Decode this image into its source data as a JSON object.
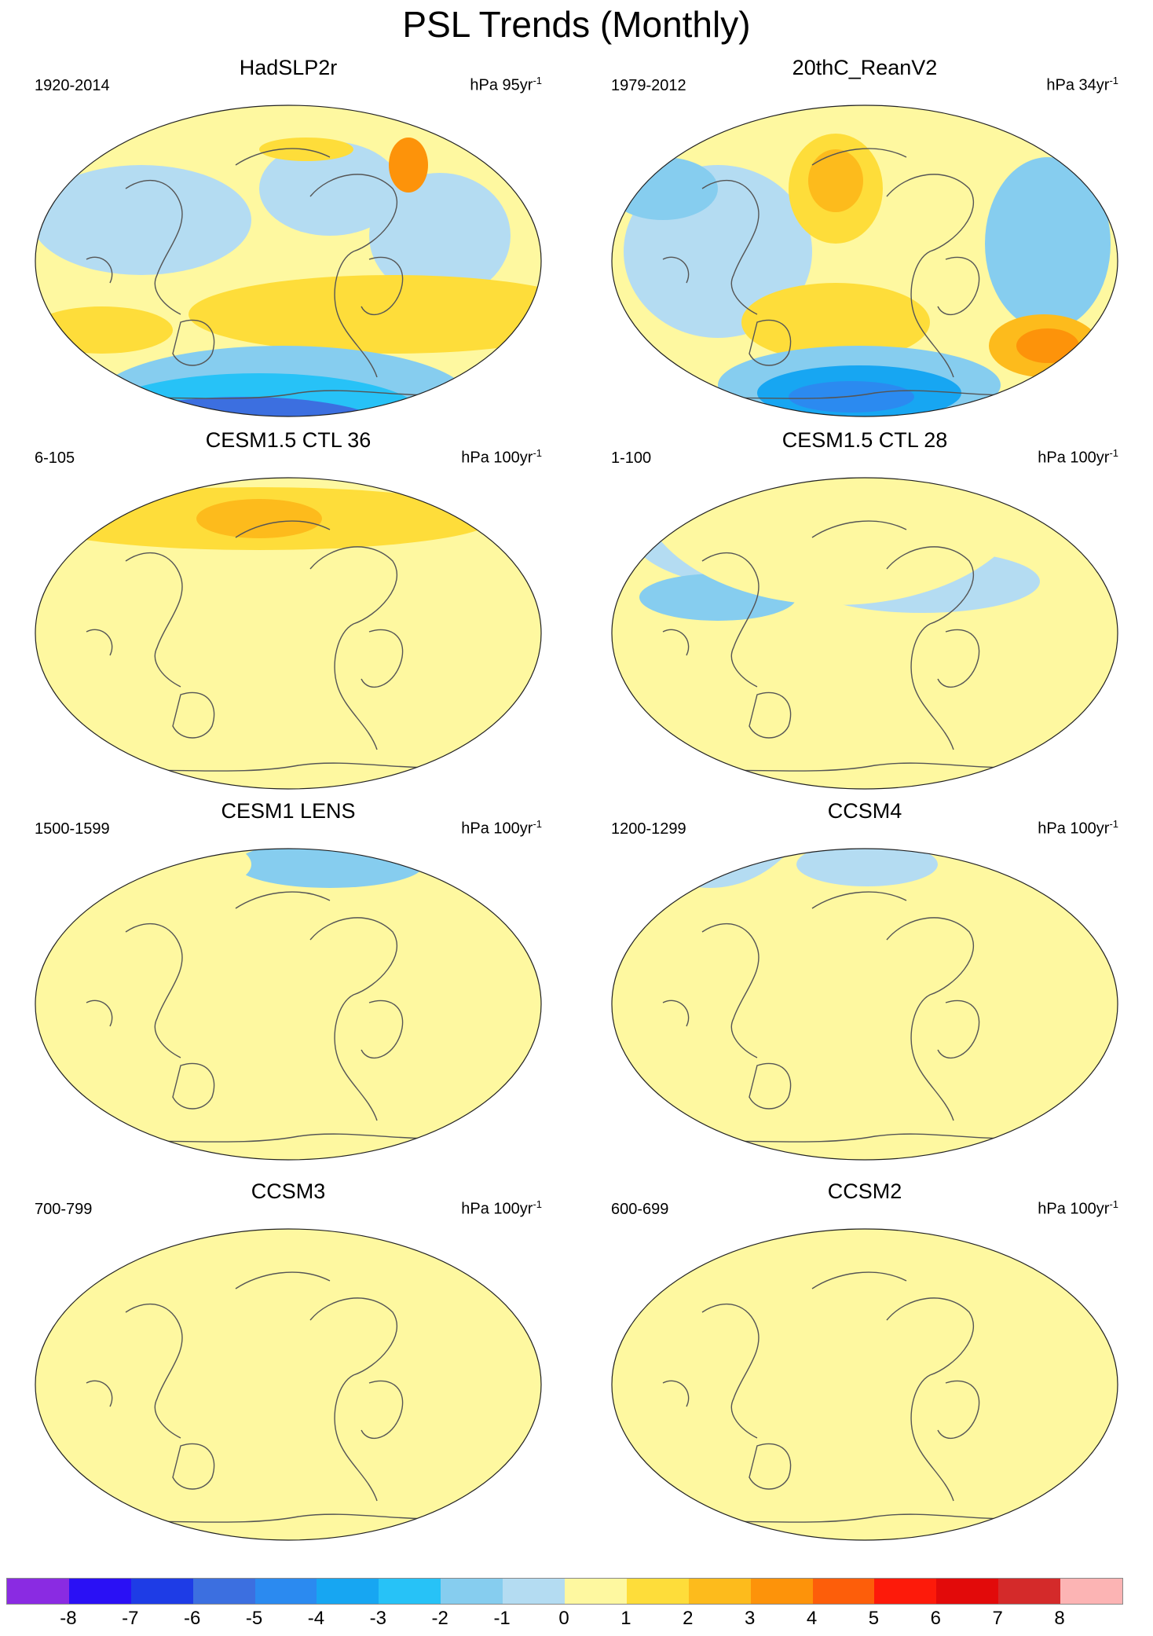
{
  "title": "PSL Trends (Monthly)",
  "colors": {
    "land_outline": "#555555",
    "neutral_neg": "#b4dcf2",
    "neutral_pos": "#fef8a0"
  },
  "panels": [
    {
      "title": "HadSLP2r",
      "years": "1920-2014",
      "units_base": "hPa 95yr",
      "units_exp": "-1"
    },
    {
      "title": "20thC_ReanV2",
      "years": "1979-2012",
      "units_base": "hPa 34yr",
      "units_exp": "-1"
    },
    {
      "title": "CESM1.5 CTL 36",
      "years": "6-105",
      "units_base": "hPa 100yr",
      "units_exp": "-1"
    },
    {
      "title": "CESM1.5 CTL 28",
      "years": "1-100",
      "units_base": "hPa 100yr",
      "units_exp": "-1"
    },
    {
      "title": "CESM1 LENS",
      "years": "1500-1599",
      "units_base": "hPa 100yr",
      "units_exp": "-1"
    },
    {
      "title": "CCSM4",
      "years": "1200-1299",
      "units_base": "hPa 100yr",
      "units_exp": "-1"
    },
    {
      "title": "CCSM3",
      "years": "700-799",
      "units_base": "hPa 100yr",
      "units_exp": "-1"
    },
    {
      "title": "CCSM2",
      "years": "600-699",
      "units_base": "hPa 100yr",
      "units_exp": "-1"
    }
  ],
  "colorbar": {
    "colors": [
      "#8a2be2",
      "#2a10f5",
      "#1e3ce6",
      "#3c6fe0",
      "#2b8af0",
      "#17a6f2",
      "#27c2f7",
      "#86cdef",
      "#b4dcf2",
      "#fef8a0",
      "#fedd3a",
      "#fdbb1c",
      "#fd930a",
      "#fd5e0a",
      "#fd1a0a",
      "#e20a0a",
      "#d42a2a",
      "#fcb4b4"
    ],
    "labels": [
      "-8",
      "-7",
      "-6",
      "-5",
      "-4",
      "-3",
      "-2",
      "-1",
      "0",
      "1",
      "2",
      "3",
      "4",
      "5",
      "6",
      "7",
      "8"
    ]
  }
}
